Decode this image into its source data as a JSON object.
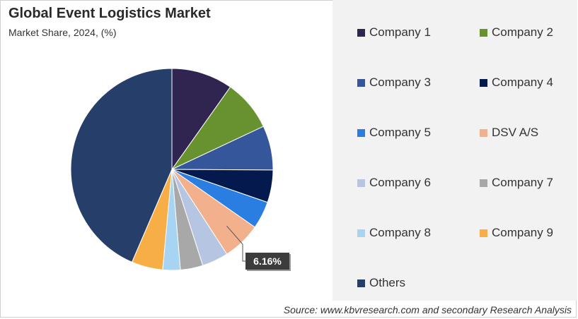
{
  "chart_data": {
    "type": "pie",
    "title": "Global Event Logistics Market",
    "subtitle": "Market Share, 2024, (%)",
    "slices": [
      {
        "name": "Company 1",
        "value": 9.8,
        "color": "#2f2550"
      },
      {
        "name": "Company 2",
        "value": 8.2,
        "color": "#67922f"
      },
      {
        "name": "Company 3",
        "value": 7.1,
        "color": "#35569b"
      },
      {
        "name": "Company 4",
        "value": 5.2,
        "color": "#041a4e"
      },
      {
        "name": "Company 5",
        "value": 4.4,
        "color": "#2a7de1"
      },
      {
        "name": "DSV A/S",
        "value": 6.16,
        "color": "#f2b08d"
      },
      {
        "name": "Company 6",
        "value": 4.2,
        "color": "#b6c6e2"
      },
      {
        "name": "Company 7",
        "value": 3.6,
        "color": "#a8a8a8"
      },
      {
        "name": "Company 8",
        "value": 2.8,
        "color": "#a7d4f2"
      },
      {
        "name": "Company 9",
        "value": 5.0,
        "color": "#f8ae46"
      },
      {
        "name": "Others",
        "value": 43.54,
        "color": "#263f6a"
      }
    ],
    "data_labels": [
      {
        "slice": "DSV A/S",
        "text": "6.16%"
      }
    ],
    "legend_placement": "right",
    "source": "Source: www.kbvresearch.com and secondary Research Analysis"
  }
}
